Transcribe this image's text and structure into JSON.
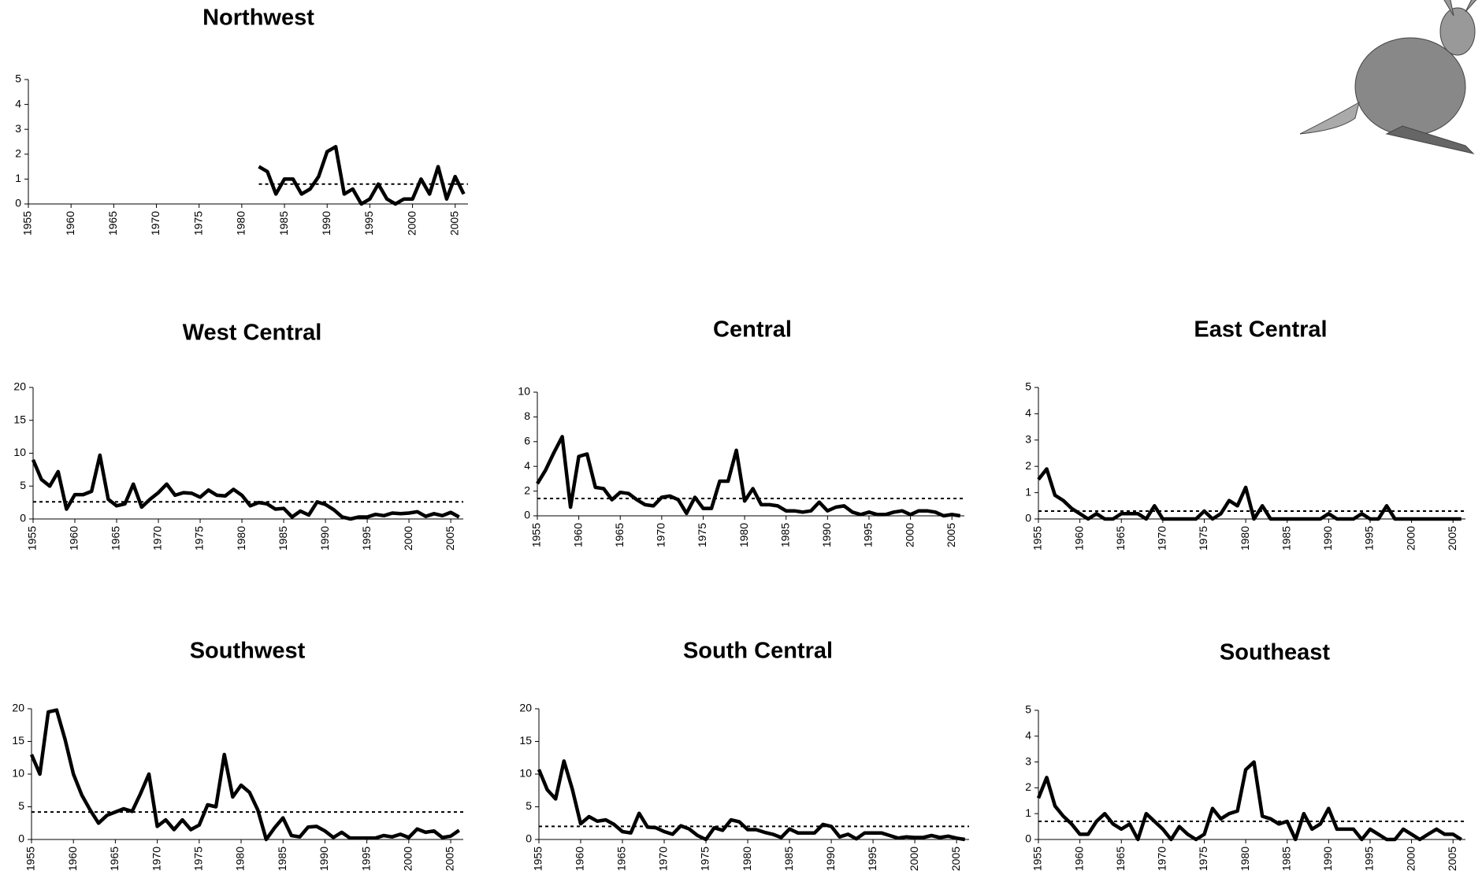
{
  "chart_data": [
    {
      "type": "line",
      "title": "Northwest",
      "xlim": [
        1955,
        2006.5
      ],
      "xticks": [
        1955,
        1960,
        1965,
        1970,
        1975,
        1980,
        1985,
        1990,
        1995,
        2000,
        2005
      ],
      "ylim": [
        0,
        5
      ],
      "yticks": [
        0,
        1,
        2,
        3,
        4,
        5
      ],
      "mean": 0.8,
      "x": [
        1982,
        1983,
        1984,
        1985,
        1986,
        1987,
        1988,
        1989,
        1990,
        1991,
        1992,
        1993,
        1994,
        1995,
        1996,
        1997,
        1998,
        1999,
        2000,
        2001,
        2002,
        2003,
        2004,
        2005,
        2006
      ],
      "values": [
        1.5,
        1.3,
        0.4,
        1.0,
        1.0,
        0.4,
        0.6,
        1.1,
        2.1,
        2.3,
        0.4,
        0.6,
        0.0,
        0.2,
        0.8,
        0.2,
        0.0,
        0.2,
        0.2,
        1.0,
        0.4,
        1.5,
        0.2,
        1.1,
        0.4
      ]
    },
    {
      "type": "line",
      "title": "West Central",
      "xlim": [
        1955,
        2006.5
      ],
      "xticks": [
        1955,
        1960,
        1965,
        1970,
        1975,
        1980,
        1985,
        1990,
        1995,
        2000,
        2005
      ],
      "ylim": [
        0,
        20
      ],
      "yticks": [
        0,
        5,
        10,
        15,
        20
      ],
      "mean": 2.6,
      "x": [
        1955,
        1956,
        1957,
        1958,
        1959,
        1960,
        1961,
        1962,
        1963,
        1964,
        1965,
        1966,
        1967,
        1968,
        1969,
        1970,
        1971,
        1972,
        1973,
        1974,
        1975,
        1976,
        1977,
        1978,
        1979,
        1980,
        1981,
        1982,
        1983,
        1984,
        1985,
        1986,
        1987,
        1988,
        1989,
        1990,
        1991,
        1992,
        1993,
        1994,
        1995,
        1996,
        1997,
        1998,
        1999,
        2000,
        2001,
        2002,
        2003,
        2004,
        2005,
        2006
      ],
      "values": [
        9,
        6,
        5,
        7.2,
        1.5,
        3.7,
        3.7,
        4.2,
        9.7,
        3,
        2,
        2.3,
        5.3,
        1.8,
        3,
        4,
        5.3,
        3.6,
        4,
        3.9,
        3.3,
        4.4,
        3.6,
        3.5,
        4.5,
        3.6,
        2,
        2.5,
        2.3,
        1.5,
        1.6,
        0.3,
        1.2,
        0.6,
        2.6,
        2.2,
        1.4,
        0.3,
        0,
        0.3,
        0.3,
        0.7,
        0.5,
        0.9,
        0.8,
        0.9,
        1.1,
        0.4,
        0.8,
        0.5,
        1.0,
        0.3
      ]
    },
    {
      "type": "line",
      "title": "Central",
      "xlim": [
        1955,
        2006.5
      ],
      "xticks": [
        1955,
        1960,
        1965,
        1970,
        1975,
        1980,
        1985,
        1990,
        1995,
        2000,
        2005
      ],
      "ylim": [
        0,
        10
      ],
      "yticks": [
        0,
        2,
        4,
        6,
        8,
        10
      ],
      "mean": 1.4,
      "x": [
        1955,
        1956,
        1957,
        1958,
        1959,
        1960,
        1961,
        1962,
        1963,
        1964,
        1965,
        1966,
        1967,
        1968,
        1969,
        1970,
        1971,
        1972,
        1973,
        1974,
        1975,
        1976,
        1977,
        1978,
        1979,
        1980,
        1981,
        1982,
        1983,
        1984,
        1985,
        1986,
        1987,
        1988,
        1989,
        1990,
        1991,
        1992,
        1993,
        1994,
        1995,
        1996,
        1997,
        1998,
        1999,
        2000,
        2001,
        2002,
        2003,
        2004,
        2005,
        2006
      ],
      "values": [
        2.6,
        3.7,
        5.1,
        6.4,
        0.7,
        4.8,
        5.0,
        2.3,
        2.2,
        1.3,
        1.9,
        1.8,
        1.3,
        0.9,
        0.8,
        1.5,
        1.6,
        1.3,
        0.2,
        1.5,
        0.6,
        0.6,
        2.8,
        2.8,
        5.3,
        1.2,
        2.2,
        0.9,
        0.9,
        0.8,
        0.4,
        0.4,
        0.3,
        0.4,
        1.1,
        0.4,
        0.7,
        0.8,
        0.3,
        0.1,
        0.3,
        0.1,
        0.1,
        0.3,
        0.4,
        0.1,
        0.4,
        0.4,
        0.3,
        0.0,
        0.1,
        0
      ]
    },
    {
      "type": "line",
      "title": "East Central",
      "xlim": [
        1955,
        2006.5
      ],
      "xticks": [
        1955,
        1960,
        1965,
        1970,
        1975,
        1980,
        1985,
        1990,
        1995,
        2000,
        2005
      ],
      "ylim": [
        0,
        5
      ],
      "yticks": [
        0,
        1,
        2,
        3,
        4,
        5
      ],
      "mean": 0.3,
      "x": [
        1955,
        1956,
        1957,
        1958,
        1959,
        1960,
        1961,
        1962,
        1963,
        1964,
        1965,
        1966,
        1967,
        1968,
        1969,
        1970,
        1971,
        1972,
        1973,
        1974,
        1975,
        1976,
        1977,
        1978,
        1979,
        1980,
        1981,
        1982,
        1983,
        1984,
        1985,
        1986,
        1987,
        1988,
        1989,
        1990,
        1991,
        1992,
        1993,
        1994,
        1995,
        1996,
        1997,
        1998,
        1999,
        2000,
        2001,
        2002,
        2003,
        2004,
        2005,
        2006
      ],
      "values": [
        1.5,
        1.9,
        0.9,
        0.7,
        0.4,
        0.2,
        0,
        0.2,
        0,
        0,
        0.2,
        0.2,
        0.2,
        0,
        0.5,
        0,
        0,
        0,
        0,
        0,
        0.3,
        0,
        0.2,
        0.7,
        0.5,
        1.2,
        0,
        0.5,
        0,
        0,
        0,
        0,
        0,
        0,
        0,
        0.2,
        0,
        0,
        0,
        0.2,
        0,
        0,
        0.5,
        0,
        0,
        0,
        0,
        0,
        0,
        0,
        0,
        0
      ]
    },
    {
      "type": "line",
      "title": "Southwest",
      "xlim": [
        1955,
        2006.5
      ],
      "xticks": [
        1955,
        1960,
        1965,
        1970,
        1975,
        1980,
        1985,
        1990,
        1995,
        2000,
        2005
      ],
      "ylim": [
        0,
        20
      ],
      "yticks": [
        0,
        5,
        10,
        15,
        20
      ],
      "mean": 4.2,
      "x": [
        1955,
        1956,
        1957,
        1958,
        1959,
        1960,
        1961,
        1962,
        1963,
        1964,
        1965,
        1966,
        1967,
        1968,
        1969,
        1970,
        1971,
        1972,
        1973,
        1974,
        1975,
        1976,
        1977,
        1978,
        1979,
        1980,
        1981,
        1982,
        1983,
        1984,
        1985,
        1986,
        1987,
        1988,
        1989,
        1990,
        1991,
        1992,
        1993,
        1994,
        1995,
        1996,
        1997,
        1998,
        1999,
        2000,
        2001,
        2002,
        2003,
        2004,
        2005,
        2006
      ],
      "values": [
        13,
        10,
        19.5,
        19.8,
        15.3,
        10,
        6.8,
        4.5,
        2.5,
        3.7,
        4.2,
        4.7,
        4.3,
        7,
        10,
        2,
        3,
        1.5,
        3,
        1.5,
        2.2,
        5.3,
        5,
        13,
        6.5,
        8.3,
        7.2,
        4.5,
        0,
        1.8,
        3.3,
        0.6,
        0.4,
        1.9,
        2,
        1.3,
        0.3,
        1.1,
        0.2,
        0.2,
        0.2,
        0.2,
        0.6,
        0.4,
        0.8,
        0.3,
        1.6,
        1.1,
        1.3,
        0.3,
        0.5,
        1.4
      ]
    },
    {
      "type": "line",
      "title": "South Central",
      "xlim": [
        1955,
        2006.5
      ],
      "xticks": [
        1955,
        1960,
        1965,
        1970,
        1975,
        1980,
        1985,
        1990,
        1995,
        2000,
        2005
      ],
      "ylim": [
        0,
        20
      ],
      "yticks": [
        0,
        5,
        10,
        15,
        20
      ],
      "mean": 2.0,
      "x": [
        1955,
        1956,
        1957,
        1958,
        1959,
        1960,
        1961,
        1962,
        1963,
        1964,
        1965,
        1966,
        1967,
        1968,
        1969,
        1970,
        1971,
        1972,
        1973,
        1974,
        1975,
        1976,
        1977,
        1978,
        1979,
        1980,
        1981,
        1982,
        1983,
        1984,
        1985,
        1986,
        1987,
        1988,
        1989,
        1990,
        1991,
        1992,
        1993,
        1994,
        1995,
        1996,
        1997,
        1998,
        1999,
        2000,
        2001,
        2002,
        2003,
        2004,
        2005,
        2006
      ],
      "values": [
        10.7,
        7.6,
        6.2,
        12,
        7.7,
        2.4,
        3.5,
        2.8,
        3,
        2.3,
        1.2,
        1,
        4,
        1.9,
        1.8,
        1.2,
        0.8,
        2.1,
        1.6,
        0.6,
        0,
        1.8,
        1.4,
        3,
        2.7,
        1.5,
        1.5,
        1.1,
        0.8,
        0.3,
        1.6,
        1.0,
        1.0,
        1.0,
        2.3,
        2.0,
        0.4,
        0.8,
        0.1,
        1.0,
        1.0,
        1.0,
        0.6,
        0.2,
        0.4,
        0.3,
        0.3,
        0.6,
        0.3,
        0.5,
        0.2,
        0
      ]
    },
    {
      "type": "line",
      "title": "Southeast",
      "xlim": [
        1955,
        2006.5
      ],
      "xticks": [
        1955,
        1960,
        1965,
        1970,
        1975,
        1980,
        1985,
        1990,
        1995,
        2000,
        2005
      ],
      "ylim": [
        0,
        5
      ],
      "yticks": [
        0,
        1,
        2,
        3,
        4,
        5
      ],
      "mean": 0.7,
      "x": [
        1955,
        1956,
        1957,
        1958,
        1959,
        1960,
        1961,
        1962,
        1963,
        1964,
        1965,
        1966,
        1967,
        1968,
        1969,
        1970,
        1971,
        1972,
        1973,
        1974,
        1975,
        1976,
        1977,
        1978,
        1979,
        1980,
        1981,
        1982,
        1983,
        1984,
        1985,
        1986,
        1987,
        1988,
        1989,
        1990,
        1991,
        1992,
        1993,
        1994,
        1995,
        1996,
        1997,
        1998,
        1999,
        2000,
        2001,
        2002,
        2003,
        2004,
        2005,
        2006
      ],
      "values": [
        1.6,
        2.4,
        1.3,
        0.9,
        0.6,
        0.2,
        0.2,
        0.7,
        1.0,
        0.6,
        0.4,
        0.6,
        0,
        1.0,
        0.7,
        0.4,
        0,
        0.5,
        0.2,
        0,
        0.2,
        1.2,
        0.8,
        1.0,
        1.1,
        2.7,
        3.0,
        0.9,
        0.8,
        0.6,
        0.7,
        0,
        1.0,
        0.4,
        0.6,
        1.2,
        0.4,
        0.4,
        0.4,
        0,
        0.4,
        0.2,
        0,
        0,
        0.4,
        0.2,
        0,
        0.2,
        0.4,
        0.2,
        0.2,
        0
      ]
    }
  ]
}
